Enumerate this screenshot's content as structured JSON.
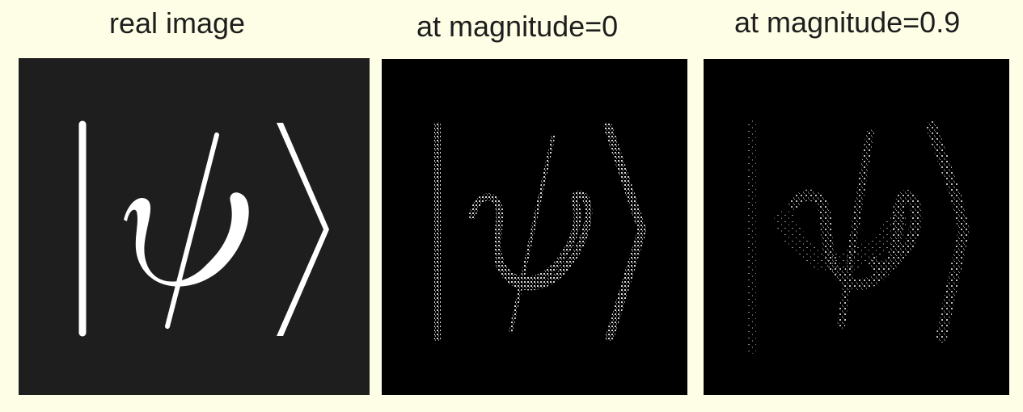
{
  "captions": {
    "real": "real image",
    "mag0": "at magnitude=0",
    "mag09": "at magnitude=0.9"
  },
  "depicted_symbol": "|ψ⟩",
  "colors": {
    "page_background": "#fefee6",
    "real_panel_background": "#1e1e1e",
    "generated_panel_background": "#000000",
    "glyph": "#ffffff"
  }
}
